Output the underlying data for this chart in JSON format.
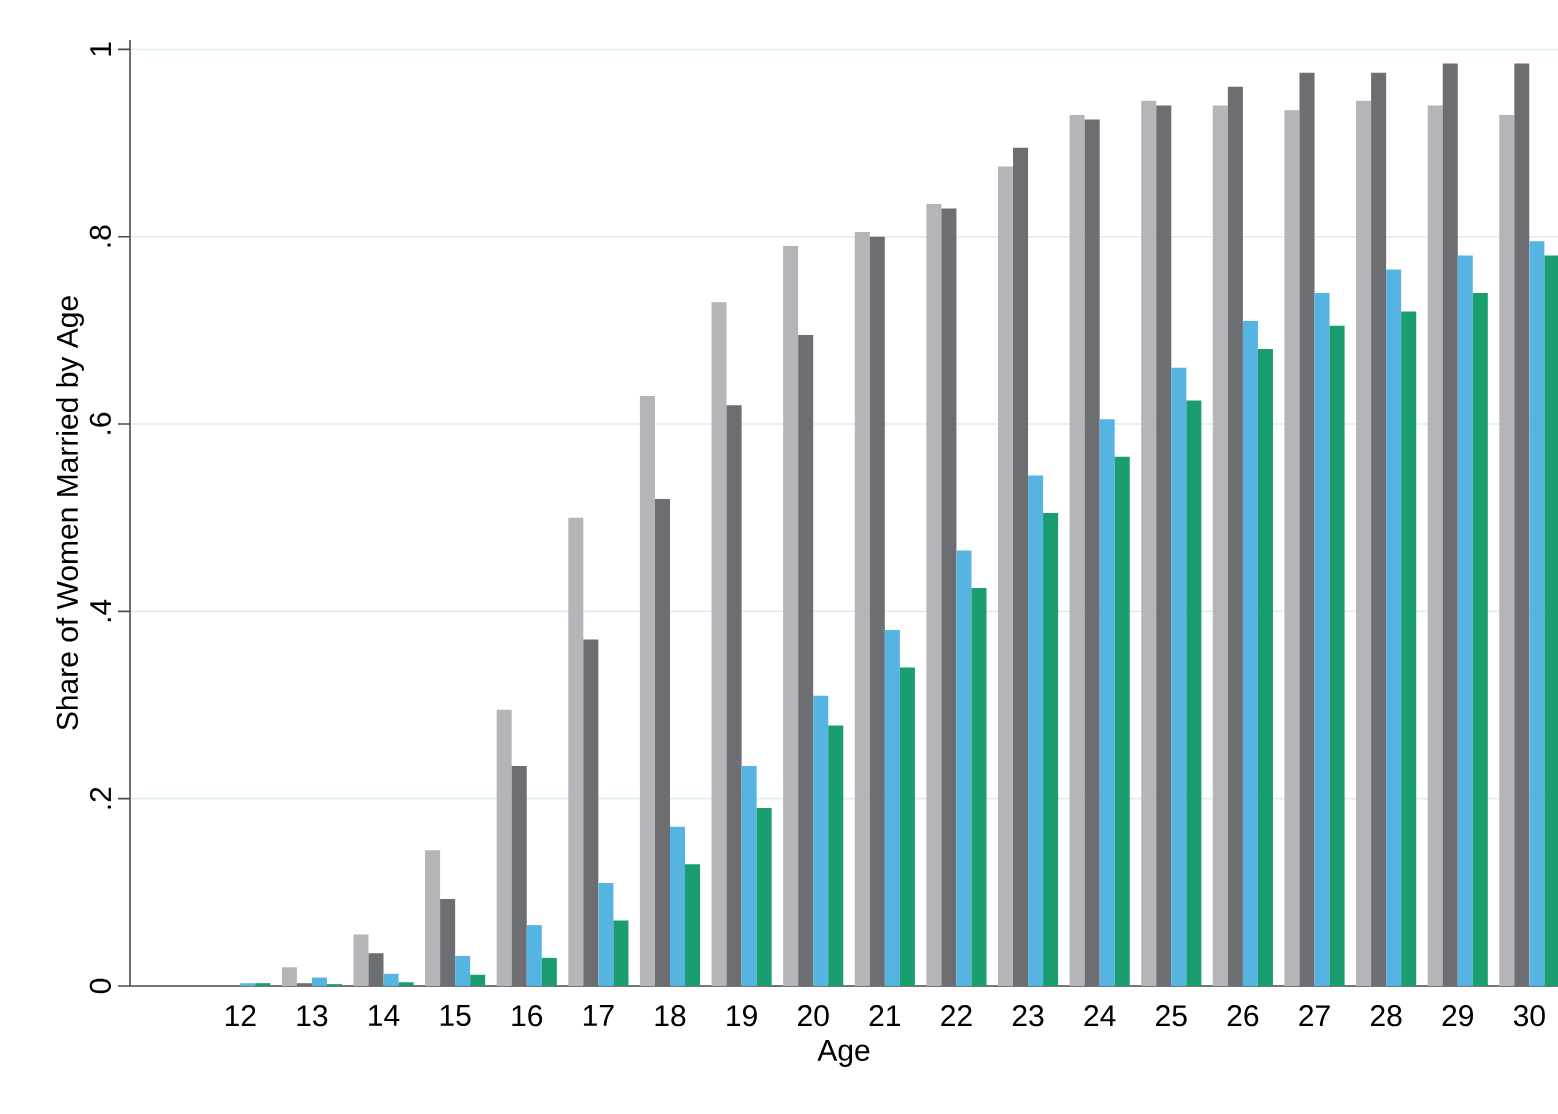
{
  "chart_data": {
    "type": "bar",
    "xlabel": "Age",
    "ylabel": "Share of Women Married by Age",
    "categories": [
      "12",
      "13",
      "14",
      "15",
      "16",
      "17",
      "18",
      "19",
      "20",
      "21",
      "22",
      "23",
      "24",
      "25",
      "26",
      "27",
      "28",
      "29",
      "30"
    ],
    "series": [
      {
        "color": "#b4b5b8",
        "values": [
          0,
          0.02,
          0.055,
          0.145,
          0.295,
          0.5,
          0.63,
          0.73,
          0.79,
          0.805,
          0.835,
          0.875,
          0.93,
          0.945,
          0.94,
          0.935,
          0.945,
          0.94,
          0.93
        ]
      },
      {
        "color": "#6d6e71",
        "values": [
          0,
          0.003,
          0.035,
          0.093,
          0.235,
          0.37,
          0.52,
          0.62,
          0.695,
          0.8,
          0.83,
          0.895,
          0.925,
          0.94,
          0.96,
          0.975,
          0.975,
          0.985,
          0.985
        ]
      },
      {
        "color": "#56b4e3",
        "values": [
          0.003,
          0.009,
          0.013,
          0.032,
          0.065,
          0.11,
          0.17,
          0.235,
          0.31,
          0.38,
          0.465,
          0.545,
          0.605,
          0.66,
          0.71,
          0.74,
          0.765,
          0.78,
          0.795
        ]
      },
      {
        "color": "#1a9d6f",
        "values": [
          0.003,
          0.002,
          0.004,
          0.012,
          0.03,
          0.07,
          0.13,
          0.19,
          0.278,
          0.34,
          0.425,
          0.505,
          0.565,
          0.625,
          0.68,
          0.705,
          0.72,
          0.74,
          0.78
        ]
      }
    ],
    "ylim": [
      0,
      1.01
    ],
    "yticks": [
      0,
      {
        "value": 0.2,
        "label": ".2"
      },
      {
        "value": 0.4,
        "label": ".4"
      },
      {
        "value": 0.6,
        "label": ".6"
      },
      {
        "value": 0.8,
        "label": ".8"
      },
      1
    ],
    "grid": "y"
  }
}
